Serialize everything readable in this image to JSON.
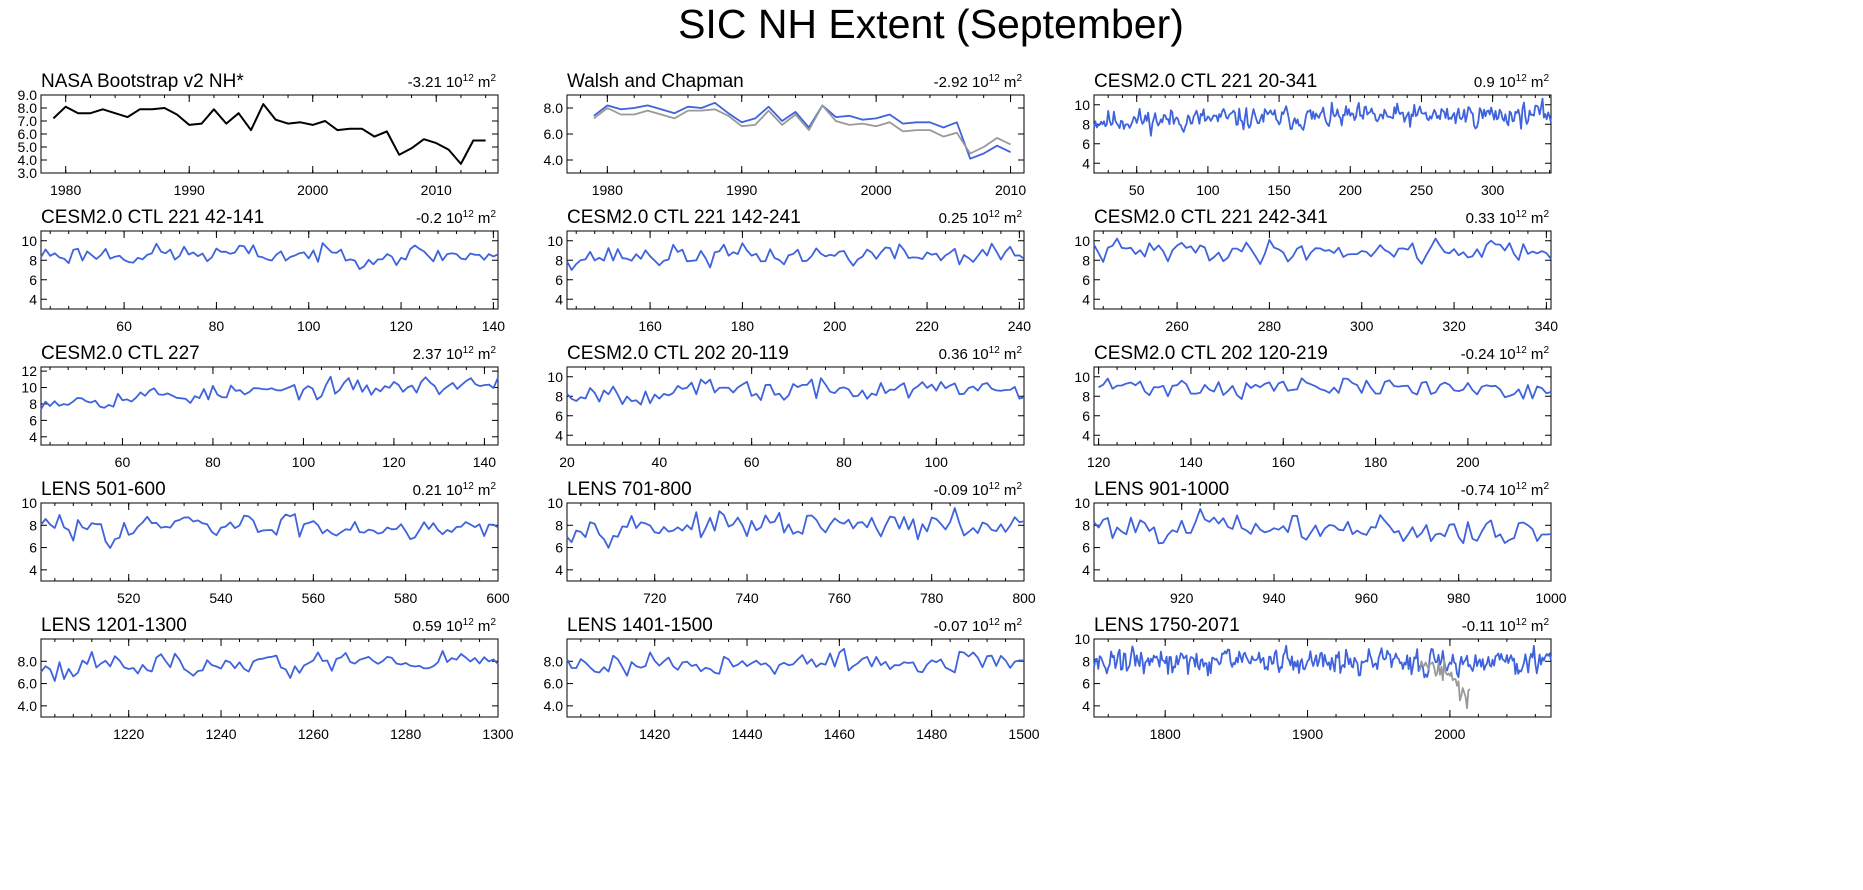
{
  "figure_title": "SIC NH Extent (September)",
  "colors": {
    "model": "#3f63dc",
    "obs": "#000000",
    "obs2": "#999999"
  },
  "chart_data": [
    {
      "type": "line",
      "title": "NASA Bootstrap v2 NH*",
      "trend": {
        "value": "-3.21",
        "base": "10",
        "exp": "12",
        "unit": "m",
        "unit_exp": "2"
      },
      "xlim": [
        1978,
        2015
      ],
      "ylim": [
        3,
        9
      ],
      "xticks": [
        1980,
        1990,
        2000,
        2010
      ],
      "yticks": [
        "3.0",
        "4.0",
        "5.0",
        "6.0",
        "7.0",
        "8.0",
        "9.0"
      ],
      "series": [
        {
          "name": "NASA Bootstrap v2",
          "color": "#000000",
          "x0": 1979,
          "values": [
            7.2,
            8.1,
            7.6,
            7.6,
            7.9,
            7.6,
            7.3,
            7.9,
            7.9,
            8.0,
            7.5,
            6.7,
            6.8,
            7.9,
            6.8,
            7.6,
            6.3,
            8.3,
            7.1,
            6.8,
            6.9,
            6.7,
            7.0,
            6.3,
            6.4,
            6.4,
            5.8,
            6.2,
            4.4,
            4.9,
            5.6,
            5.3,
            4.8,
            3.7,
            5.5,
            5.5
          ]
        }
      ]
    },
    {
      "type": "line",
      "title": "Walsh and Chapman",
      "trend": {
        "value": "-2.92",
        "base": "10",
        "exp": "12",
        "unit": "m",
        "unit_exp": "2"
      },
      "xlim": [
        1977,
        2011
      ],
      "ylim": [
        3,
        9
      ],
      "xticks": [
        1980,
        1990,
        2000,
        2010
      ],
      "yticks": [
        "4.0",
        "6.0",
        "8.0"
      ],
      "series": [
        {
          "name": "Walsh and Chapman",
          "color": "#3f63dc",
          "x0": 1979,
          "values": [
            7.4,
            8.2,
            7.9,
            8.0,
            8.2,
            7.9,
            7.6,
            8.1,
            8.0,
            8.4,
            7.6,
            6.9,
            7.2,
            8.1,
            7.0,
            7.7,
            6.5,
            8.2,
            7.3,
            7.4,
            7.1,
            7.2,
            7.5,
            6.8,
            6.9,
            6.9,
            6.5,
            6.9,
            4.1,
            4.5,
            5.1,
            4.6
          ]
        },
        {
          "name": "NASA Bootstrap v2",
          "color": "#999999",
          "x0": 1979,
          "values": [
            7.2,
            8.0,
            7.5,
            7.5,
            7.8,
            7.5,
            7.2,
            7.8,
            7.8,
            7.9,
            7.4,
            6.6,
            6.7,
            7.8,
            6.7,
            7.5,
            6.3,
            8.2,
            7.0,
            6.7,
            6.8,
            6.6,
            6.9,
            6.2,
            6.3,
            6.3,
            5.8,
            6.1,
            4.5,
            5.0,
            5.7,
            5.2
          ]
        }
      ]
    },
    {
      "type": "line",
      "title": "CESM2.0 CTL 221 20-341",
      "trend": {
        "value": "0.9",
        "base": "10",
        "exp": "12",
        "unit": "m",
        "unit_exp": "2"
      },
      "xlim": [
        20,
        341
      ],
      "ylim": [
        3,
        11
      ],
      "xticks": [
        50,
        100,
        150,
        200,
        250,
        300
      ],
      "yticks": [
        "4",
        "6",
        "8",
        "10"
      ],
      "series": [
        {
          "name": "CESM2.0",
          "color": "#3f63dc",
          "x0": 20,
          "gen": {
            "n": 322,
            "mean": 8.7,
            "trend": 0.7,
            "amp": 0.55,
            "seed": 11
          }
        }
      ]
    },
    {
      "type": "line",
      "title": "CESM2.0 CTL 221 42-141",
      "trend": {
        "value": "-0.2",
        "base": "10",
        "exp": "12",
        "unit": "m",
        "unit_exp": "2"
      },
      "xlim": [
        42,
        141
      ],
      "ylim": [
        3,
        11
      ],
      "xticks": [
        60,
        80,
        100,
        120,
        140
      ],
      "yticks": [
        "4",
        "6",
        "8",
        "10"
      ],
      "series": [
        {
          "name": "CESM2.0",
          "color": "#3f63dc",
          "x0": 42,
          "gen": {
            "n": 100,
            "mean": 8.6,
            "trend": -0.1,
            "amp": 0.5,
            "seed": 23
          }
        }
      ]
    },
    {
      "type": "line",
      "title": "CESM2.0 CTL 221 142-241",
      "trend": {
        "value": "0.25",
        "base": "10",
        "exp": "12",
        "unit": "m",
        "unit_exp": "2"
      },
      "xlim": [
        142,
        241
      ],
      "ylim": [
        3,
        11
      ],
      "xticks": [
        160,
        180,
        200,
        220,
        240
      ],
      "yticks": [
        "4",
        "6",
        "8",
        "10"
      ],
      "series": [
        {
          "name": "CESM2.0",
          "color": "#3f63dc",
          "x0": 142,
          "gen": {
            "n": 100,
            "mean": 8.5,
            "trend": 0.2,
            "amp": 0.55,
            "seed": 37
          }
        }
      ]
    },
    {
      "type": "line",
      "title": "CESM2.0 CTL 221 242-341",
      "trend": {
        "value": "0.33",
        "base": "10",
        "exp": "12",
        "unit": "m",
        "unit_exp": "2"
      },
      "xlim": [
        242,
        341
      ],
      "ylim": [
        3,
        11
      ],
      "xticks": [
        260,
        280,
        300,
        320,
        340
      ],
      "yticks": [
        "4",
        "6",
        "8",
        "10"
      ],
      "series": [
        {
          "name": "CESM2.0",
          "color": "#3f63dc",
          "x0": 242,
          "gen": {
            "n": 100,
            "mean": 9.0,
            "trend": 0.25,
            "amp": 0.55,
            "seed": 41
          }
        }
      ]
    },
    {
      "type": "line",
      "title": "CESM2.0 CTL 227",
      "trend": {
        "value": "2.37",
        "base": "10",
        "exp": "12",
        "unit": "m",
        "unit_exp": "2"
      },
      "xlim": [
        42,
        143
      ],
      "ylim": [
        3,
        12.5
      ],
      "xticks": [
        60,
        80,
        100,
        120,
        140
      ],
      "yticks": [
        "4",
        "6",
        "8",
        "10",
        "12"
      ],
      "series": [
        {
          "name": "CESM2.0",
          "color": "#3f63dc",
          "x0": 42,
          "gen": {
            "n": 102,
            "mean": 9.5,
            "trend": 2.0,
            "amp": 0.55,
            "seed": 53
          }
        }
      ]
    },
    {
      "type": "line",
      "title": "CESM2.0 CTL 202 20-119",
      "trend": {
        "value": "0.36",
        "base": "10",
        "exp": "12",
        "unit": "m",
        "unit_exp": "2"
      },
      "xlim": [
        20,
        119
      ],
      "ylim": [
        3,
        11
      ],
      "xticks": [
        20,
        40,
        60,
        80,
        100
      ],
      "yticks": [
        "4",
        "6",
        "8",
        "10"
      ],
      "series": [
        {
          "name": "CESM2.0",
          "color": "#3f63dc",
          "x0": 20,
          "gen": {
            "n": 100,
            "mean": 8.6,
            "trend": 0.3,
            "amp": 0.55,
            "seed": 67
          }
        }
      ]
    },
    {
      "type": "line",
      "title": "CESM2.0 CTL 202 120-219",
      "trend": {
        "value": "-0.24",
        "base": "10",
        "exp": "12",
        "unit": "m",
        "unit_exp": "2"
      },
      "xlim": [
        119,
        218
      ],
      "ylim": [
        3,
        11
      ],
      "xticks": [
        120,
        140,
        160,
        180,
        200
      ],
      "yticks": [
        "4",
        "6",
        "8",
        "10"
      ],
      "series": [
        {
          "name": "CESM2.0",
          "color": "#3f63dc",
          "x0": 120,
          "gen": {
            "n": 99,
            "mean": 8.9,
            "trend": -0.2,
            "amp": 0.5,
            "seed": 71
          }
        }
      ]
    },
    {
      "type": "line",
      "title": "LENS 501-600",
      "trend": {
        "value": "0.21",
        "base": "10",
        "exp": "12",
        "unit": "m",
        "unit_exp": "2"
      },
      "xlim": [
        501,
        600
      ],
      "ylim": [
        3,
        10
      ],
      "xticks": [
        520,
        540,
        560,
        580,
        600
      ],
      "yticks": [
        "4",
        "6",
        "8",
        "10"
      ],
      "series": [
        {
          "name": "LENS",
          "color": "#3f63dc",
          "x0": 501,
          "gen": {
            "n": 100,
            "mean": 7.9,
            "trend": 0.2,
            "amp": 0.55,
            "seed": 83
          }
        }
      ]
    },
    {
      "type": "line",
      "title": "LENS 701-800",
      "trend": {
        "value": "-0.09",
        "base": "10",
        "exp": "12",
        "unit": "m",
        "unit_exp": "2"
      },
      "xlim": [
        701,
        800
      ],
      "ylim": [
        3,
        10
      ],
      "xticks": [
        720,
        740,
        760,
        780,
        800
      ],
      "yticks": [
        "4",
        "6",
        "8",
        "10"
      ],
      "series": [
        {
          "name": "LENS",
          "color": "#3f63dc",
          "x0": 701,
          "gen": {
            "n": 100,
            "mean": 7.9,
            "trend": -0.1,
            "amp": 0.55,
            "seed": 97
          }
        }
      ]
    },
    {
      "type": "line",
      "title": "LENS 901-1000",
      "trend": {
        "value": "-0.74",
        "base": "10",
        "exp": "12",
        "unit": "m",
        "unit_exp": "2"
      },
      "xlim": [
        901,
        1000
      ],
      "ylim": [
        3,
        10
      ],
      "xticks": [
        920,
        940,
        960,
        980,
        1000
      ],
      "yticks": [
        "4",
        "6",
        "8",
        "10"
      ],
      "series": [
        {
          "name": "LENS",
          "color": "#3f63dc",
          "x0": 901,
          "gen": {
            "n": 100,
            "mean": 7.7,
            "trend": -0.7,
            "amp": 0.6,
            "seed": 101
          }
        }
      ]
    },
    {
      "type": "line",
      "title": "LENS 1201-1300",
      "trend": {
        "value": "0.59",
        "base": "10",
        "exp": "12",
        "unit": "m",
        "unit_exp": "2"
      },
      "xlim": [
        1201,
        1300
      ],
      "ylim": [
        3,
        10
      ],
      "xticks": [
        1220,
        1240,
        1260,
        1280,
        1300
      ],
      "yticks": [
        "4.0",
        "6.0",
        "8.0"
      ],
      "series": [
        {
          "name": "LENS",
          "color": "#3f63dc",
          "x0": 1201,
          "gen": {
            "n": 100,
            "mean": 7.8,
            "trend": 0.5,
            "amp": 0.5,
            "seed": 113
          }
        }
      ]
    },
    {
      "type": "line",
      "title": "LENS 1401-1500",
      "trend": {
        "value": "-0.07",
        "base": "10",
        "exp": "12",
        "unit": "m",
        "unit_exp": "2"
      },
      "xlim": [
        1401,
        1500
      ],
      "ylim": [
        3,
        10
      ],
      "xticks": [
        1420,
        1440,
        1460,
        1480,
        1500
      ],
      "yticks": [
        "4.0",
        "6.0",
        "8.0"
      ],
      "series": [
        {
          "name": "LENS",
          "color": "#3f63dc",
          "x0": 1401,
          "gen": {
            "n": 100,
            "mean": 7.8,
            "trend": -0.05,
            "amp": 0.5,
            "seed": 127
          }
        }
      ]
    },
    {
      "type": "line",
      "title": "LENS 1750-2071",
      "trend": {
        "value": "-0.11",
        "base": "10",
        "exp": "12",
        "unit": "m",
        "unit_exp": "2"
      },
      "xlim": [
        1750,
        2071
      ],
      "ylim": [
        3,
        10
      ],
      "xticks": [
        1800,
        1900,
        2000
      ],
      "yticks": [
        "4",
        "6",
        "8",
        "10"
      ],
      "series": [
        {
          "name": "LENS",
          "color": "#3f63dc",
          "x0": 1750,
          "gen": {
            "n": 322,
            "mean": 8.0,
            "trend": -0.1,
            "amp": 0.55,
            "seed": 131
          }
        },
        {
          "name": "NASA Bootstrap v2",
          "color": "#999999",
          "x0": 1979,
          "values": [
            7.2,
            8.0,
            7.6,
            7.6,
            7.9,
            7.6,
            7.3,
            7.8,
            7.8,
            7.9,
            7.4,
            6.7,
            6.9,
            7.8,
            6.8,
            7.5,
            6.3,
            8.1,
            7.0,
            6.8,
            6.9,
            6.7,
            7.0,
            6.3,
            6.4,
            6.4,
            5.8,
            6.2,
            4.5,
            4.9,
            5.6,
            5.2,
            4.8,
            3.8,
            5.4,
            5.5
          ]
        }
      ]
    }
  ]
}
